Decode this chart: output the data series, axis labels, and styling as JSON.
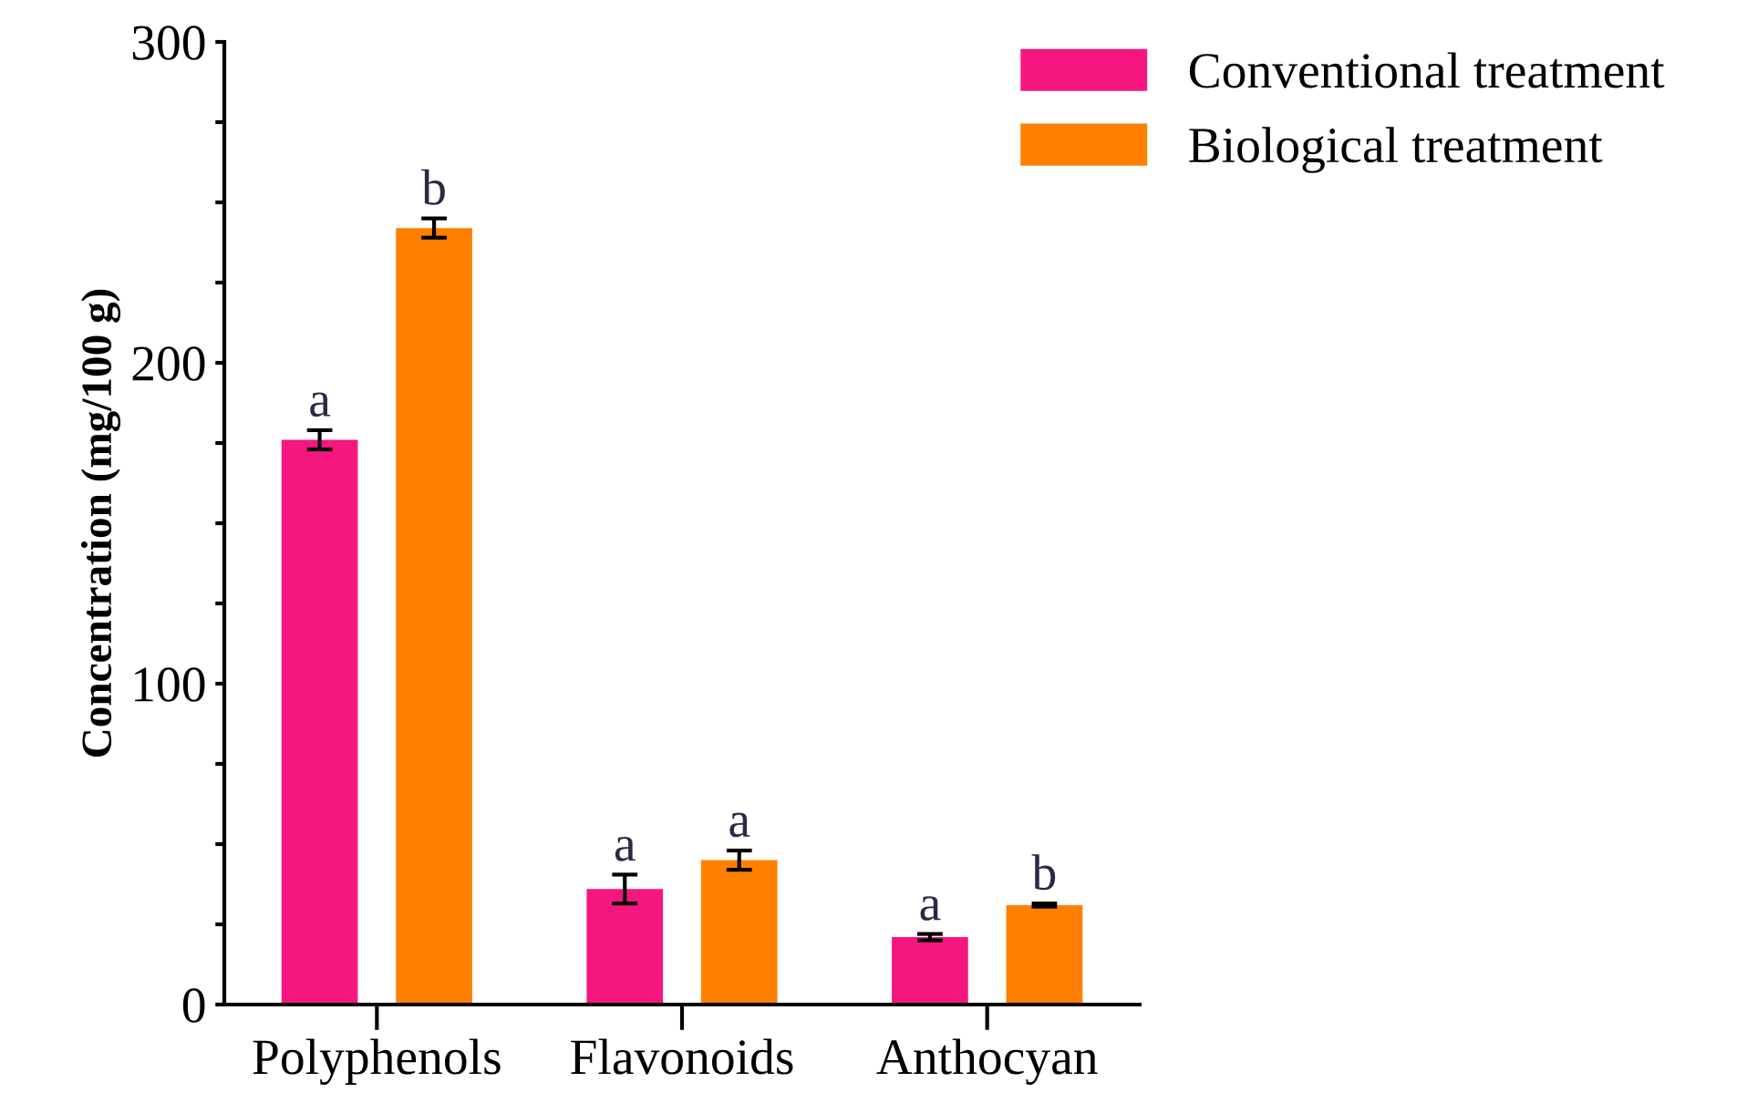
{
  "chart_data": {
    "type": "bar",
    "ylabel": "Concentration (mg/100 g)",
    "categories": [
      "Polyphenols",
      "Flavonoids",
      "Anthocyan"
    ],
    "series": [
      {
        "name": "Conventional treatment",
        "color": "#f5177f",
        "values": [
          176,
          36,
          21
        ],
        "errors": [
          3,
          4.5,
          1
        ]
      },
      {
        "name": "Biological treatment",
        "color": "#ff8000",
        "values": [
          242,
          45,
          31
        ],
        "errors": [
          3,
          3,
          0.5
        ]
      }
    ],
    "ylim": [
      0,
      300
    ],
    "yticks": [
      0,
      {
        "value": 25,
        "label": null
      },
      {
        "value": 50,
        "label": null
      },
      {
        "value": 75,
        "label": null
      },
      100,
      {
        "value": 125,
        "label": null
      },
      {
        "value": 150,
        "label": null
      },
      {
        "value": 175,
        "label": null
      },
      200,
      {
        "value": 225,
        "label": null
      },
      {
        "value": 250,
        "label": null
      },
      {
        "value": 275,
        "label": null
      },
      300
    ],
    "annotations": [
      "a",
      "b",
      "a",
      "a",
      "a",
      "b"
    ],
    "legend": "top right",
    "grid": false
  }
}
